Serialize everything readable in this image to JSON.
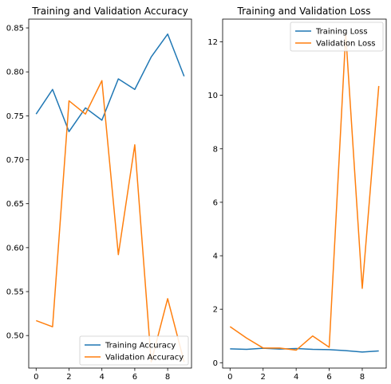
{
  "chart_data": [
    {
      "type": "line",
      "title": "Training and Validation Accuracy",
      "x": [
        0,
        1,
        2,
        3,
        4,
        5,
        6,
        7,
        8,
        9
      ],
      "xlim": [
        -0.45,
        9.45
      ],
      "ylim": [
        0.463,
        0.86
      ],
      "xticks": [
        0,
        2,
        4,
        6,
        8
      ],
      "yticks": [
        0.5,
        0.55,
        0.6,
        0.65,
        0.7,
        0.75,
        0.8,
        0.85
      ],
      "ytick_labels": [
        "0.50",
        "0.55",
        "0.60",
        "0.65",
        "0.70",
        "0.75",
        "0.80",
        "0.85"
      ],
      "legend_position": "lower-right",
      "series": [
        {
          "name": "Training Accuracy",
          "color": "#1f77b4",
          "values": [
            0.752,
            0.78,
            0.732,
            0.759,
            0.745,
            0.792,
            0.78,
            0.817,
            0.843,
            0.795
          ]
        },
        {
          "name": "Validation Accuracy",
          "color": "#ff7f0e",
          "values": [
            0.517,
            0.51,
            0.767,
            0.752,
            0.79,
            0.592,
            0.717,
            0.47,
            0.542,
            0.47
          ]
        }
      ]
    },
    {
      "type": "line",
      "title": "Training and Validation Loss",
      "x": [
        0,
        1,
        2,
        3,
        4,
        5,
        6,
        7,
        8,
        9
      ],
      "xlim": [
        -0.45,
        9.45
      ],
      "ylim": [
        -0.2,
        12.85
      ],
      "xticks": [
        0,
        2,
        4,
        6,
        8
      ],
      "yticks": [
        0,
        2,
        4,
        6,
        8,
        10,
        12
      ],
      "ytick_labels": [
        "0",
        "2",
        "4",
        "6",
        "8",
        "10",
        "12"
      ],
      "legend_position": "upper-right",
      "series": [
        {
          "name": "Training Loss",
          "color": "#1f77b4",
          "values": [
            0.52,
            0.5,
            0.54,
            0.51,
            0.53,
            0.5,
            0.49,
            0.45,
            0.4,
            0.44
          ]
        },
        {
          "name": "Validation Loss",
          "color": "#ff7f0e",
          "values": [
            1.35,
            0.92,
            0.55,
            0.55,
            0.47,
            1.0,
            0.58,
            12.3,
            2.78,
            10.35
          ]
        }
      ]
    }
  ]
}
